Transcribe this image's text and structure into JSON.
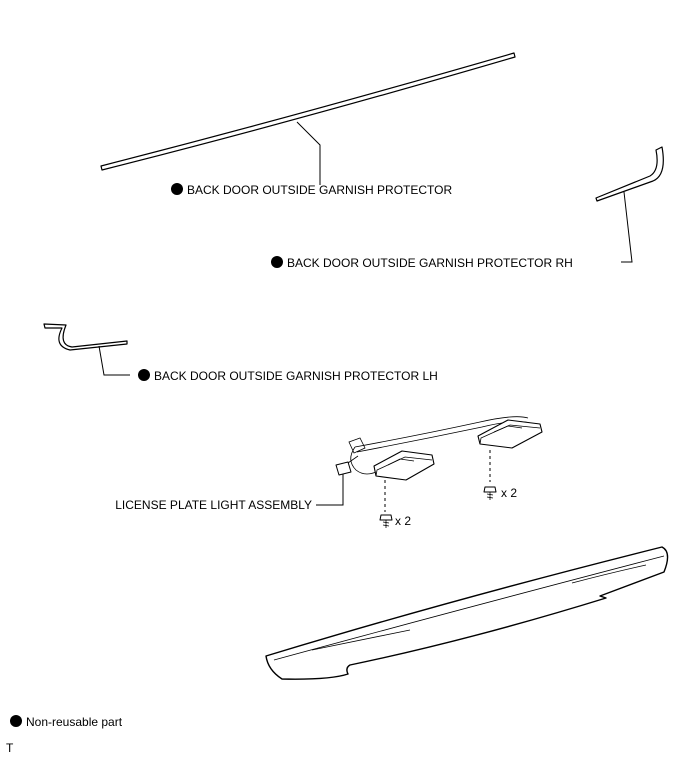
{
  "labels": {
    "garnish_protector": "BACK DOOR OUTSIDE GARNISH PROTECTOR",
    "garnish_protector_rh": "BACK DOOR OUTSIDE GARNISH PROTECTOR RH",
    "garnish_protector_lh": "BACK DOOR OUTSIDE GARNISH PROTECTOR LH",
    "license_plate_light": "LICENSE PLATE LIGHT ASSEMBLY",
    "screw_qty_right": "x 2",
    "screw_qty_left": "x 2"
  },
  "legend": {
    "text": "Non-reusable part"
  },
  "corner_mark": "T",
  "colors": {
    "ink": "#000000",
    "background": "#ffffff"
  }
}
